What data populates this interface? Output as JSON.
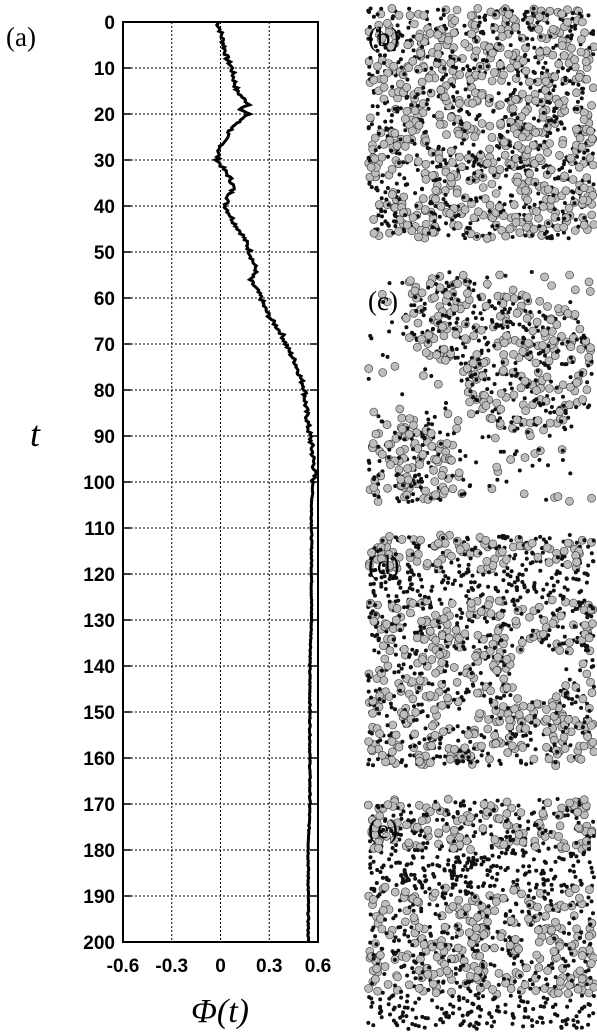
{
  "panels": {
    "a": "(a)",
    "b": "(b)",
    "c": "(c)",
    "d": "(d)",
    "e": "(e)"
  },
  "chart_data": {
    "type": "line",
    "orientation": "vertical-time-axis",
    "xlabel": "Φ(t)",
    "ylabel": "t",
    "xlim": [
      -0.6,
      0.6
    ],
    "ylim": [
      0,
      200
    ],
    "y_inverted": true,
    "grid": true,
    "xticks": [
      "-0.6",
      "-0.3",
      "0",
      "0.3",
      "0.6"
    ],
    "yticks": [
      "0",
      "10",
      "20",
      "30",
      "40",
      "50",
      "60",
      "70",
      "80",
      "90",
      "100",
      "110",
      "120",
      "130",
      "140",
      "150",
      "160",
      "170",
      "180",
      "190",
      "200"
    ],
    "series": [
      {
        "color": "#000000",
        "t": [
          0,
          2,
          5,
          8,
          10,
          12,
          15,
          17,
          18,
          19,
          20,
          22,
          24,
          26,
          28,
          30,
          32,
          34,
          36,
          38,
          40,
          42,
          44,
          46,
          48,
          50,
          52,
          54,
          56,
          58,
          60,
          62,
          64,
          66,
          68,
          70,
          72,
          74,
          76,
          78,
          80,
          82,
          85,
          88,
          90,
          92,
          95,
          98,
          100,
          105,
          110,
          120,
          130,
          140,
          150,
          160,
          170,
          180,
          190,
          200
        ],
        "phi": [
          -0.02,
          0.0,
          0.02,
          0.04,
          0.07,
          0.08,
          0.1,
          0.15,
          0.18,
          0.12,
          0.17,
          0.1,
          0.05,
          0.02,
          -0.01,
          -0.02,
          0.02,
          0.06,
          0.08,
          0.05,
          0.03,
          0.06,
          0.09,
          0.13,
          0.16,
          0.18,
          0.2,
          0.22,
          0.18,
          0.22,
          0.25,
          0.27,
          0.3,
          0.34,
          0.38,
          0.4,
          0.43,
          0.46,
          0.48,
          0.5,
          0.52,
          0.52,
          0.53,
          0.54,
          0.55,
          0.56,
          0.57,
          0.58,
          0.57,
          0.56,
          0.56,
          0.56,
          0.56,
          0.55,
          0.55,
          0.55,
          0.55,
          0.54,
          0.54,
          0.54
        ]
      }
    ]
  },
  "snapshots": [
    {
      "id": "b",
      "description_colors": {
        "large": "#bdbdbd",
        "small": "#111111"
      }
    },
    {
      "id": "c"
    },
    {
      "id": "d"
    },
    {
      "id": "e"
    }
  ]
}
